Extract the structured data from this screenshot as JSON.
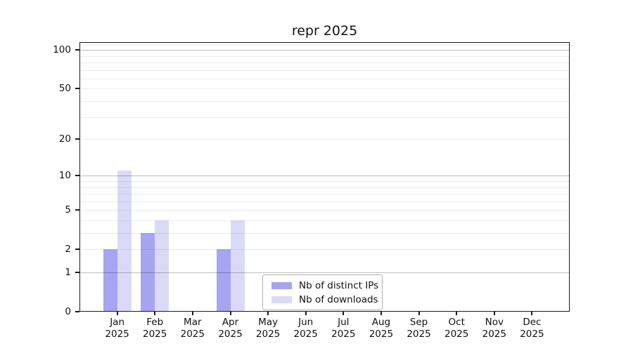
{
  "title": "repr 2025",
  "chart_data": {
    "type": "bar",
    "title": "repr 2025",
    "categories": [
      "Jan",
      "Feb",
      "Mar",
      "Apr",
      "May",
      "Jun",
      "Jul",
      "Aug",
      "Sep",
      "Oct",
      "Nov",
      "Dec"
    ],
    "category_year": "2025",
    "series": [
      {
        "key": "distinct-ips",
        "name": "Nb of distinct IPs",
        "color": "#a5a5f2",
        "values": [
          2,
          3,
          0,
          2,
          0,
          0,
          0,
          0,
          0,
          0,
          0,
          0
        ]
      },
      {
        "key": "downloads",
        "name": "Nb of downloads",
        "color": "#dadaf8",
        "values": [
          11,
          4,
          0,
          4,
          0,
          0,
          0,
          0,
          0,
          0,
          0,
          0
        ]
      }
    ],
    "y_scale": "log1p",
    "ylim": [
      0,
      115
    ],
    "y_major_ticks": [
      0,
      1,
      2,
      5,
      10,
      20,
      50,
      100
    ],
    "y_major_gridlines": [
      1,
      10,
      100
    ],
    "y_minor_gridlines": [
      2,
      3,
      4,
      5,
      6,
      7,
      8,
      9,
      20,
      30,
      40,
      50,
      60,
      70,
      80,
      90,
      110
    ],
    "grid": "on",
    "legend_position": "inside lower-center"
  },
  "colors": {
    "background": "#ffffff",
    "axis": "#1a1a1a",
    "text": "#111111",
    "grid_major": "rgba(0,0,0,0.25)",
    "grid_minor": "rgba(0,0,0,0.075)",
    "legend_border": "#b0b0b0",
    "legend_background": "#ffffff",
    "series_distinct_ips": "#a5a5f2",
    "series_downloads": "#dadaf8"
  }
}
